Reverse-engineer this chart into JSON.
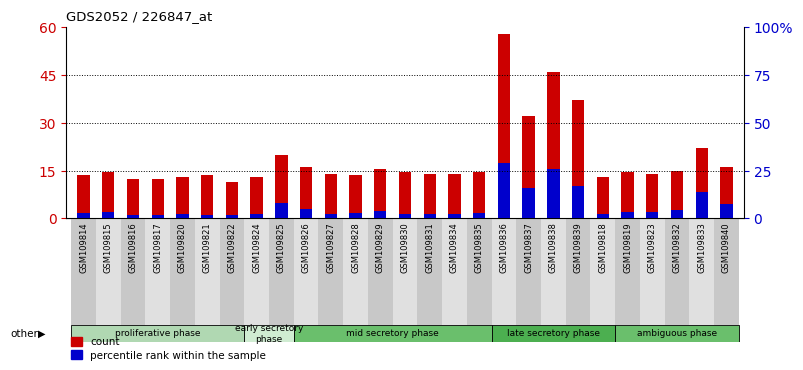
{
  "title": "GDS2052 / 226847_at",
  "samples": [
    "GSM109814",
    "GSM109815",
    "GSM109816",
    "GSM109817",
    "GSM109820",
    "GSM109821",
    "GSM109822",
    "GSM109824",
    "GSM109825",
    "GSM109826",
    "GSM109827",
    "GSM109828",
    "GSM109829",
    "GSM109830",
    "GSM109831",
    "GSM109834",
    "GSM109835",
    "GSM109836",
    "GSM109837",
    "GSM109838",
    "GSM109839",
    "GSM109818",
    "GSM109819",
    "GSM109823",
    "GSM109832",
    "GSM109833",
    "GSM109840"
  ],
  "count_values": [
    13.5,
    14.5,
    12.5,
    12.5,
    13.0,
    13.5,
    11.5,
    13.0,
    20.0,
    16.0,
    14.0,
    13.5,
    15.5,
    14.5,
    14.0,
    14.0,
    14.5,
    58.0,
    32.0,
    46.0,
    37.0,
    13.0,
    14.5,
    14.0,
    15.0,
    22.0,
    16.0
  ],
  "percentile_values": [
    3.0,
    3.5,
    1.5,
    2.0,
    2.5,
    2.0,
    1.5,
    2.5,
    8.0,
    5.0,
    2.5,
    3.0,
    4.0,
    2.5,
    2.5,
    2.5,
    3.0,
    29.0,
    16.0,
    26.0,
    17.0,
    2.5,
    3.5,
    3.5,
    4.5,
    14.0,
    7.5
  ],
  "phases": [
    {
      "label": "proliferative phase",
      "start": 0,
      "end": 7,
      "color": "#b0d8b2"
    },
    {
      "label": "early secretory\nphase",
      "start": 7,
      "end": 9,
      "color": "#d0ecd2"
    },
    {
      "label": "mid secretory phase",
      "start": 9,
      "end": 17,
      "color": "#6abf6c"
    },
    {
      "label": "late secretory phase",
      "start": 17,
      "end": 22,
      "color": "#4caf50"
    },
    {
      "label": "ambiguous phase",
      "start": 22,
      "end": 27,
      "color": "#6abf6c"
    }
  ],
  "bar_color": "#cc0000",
  "percentile_color": "#0000cc",
  "left_ylim": [
    0,
    60
  ],
  "right_ylim": [
    0,
    100
  ],
  "left_yticks": [
    0,
    15,
    30,
    45,
    60
  ],
  "right_yticks": [
    0,
    25,
    50,
    75,
    100
  ],
  "right_yticklabels": [
    "0",
    "25",
    "50",
    "75",
    "100%"
  ],
  "grid_values": [
    15,
    30,
    45
  ],
  "left_tick_color": "#cc0000",
  "right_tick_color": "#0000cc",
  "tick_bg_even": "#c8c8c8",
  "tick_bg_odd": "#e0e0e0"
}
